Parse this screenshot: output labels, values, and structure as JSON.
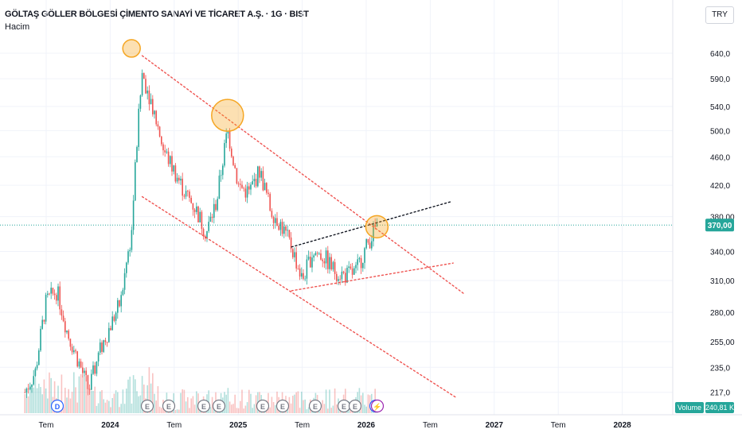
{
  "header": {
    "title": "GÖLTAŞ GÖLLER BÖLGESİ ÇİMENTO SANAYİ VE TİCARET A.Ş. · 1G · BIST",
    "subtitle": "Hacim",
    "currency_button": "TRY"
  },
  "chart_data": {
    "type": "candlestick",
    "scale": "log",
    "y_ticks": [
      "640,0",
      "590,0",
      "540,0",
      "500,0",
      "460,0",
      "420,0",
      "380,00",
      "340,00",
      "310,00",
      "280,00",
      "255,00",
      "235,0",
      "217,0"
    ],
    "x_ticks": [
      "Tem",
      "2024",
      "Tem",
      "2025",
      "Tem",
      "2026",
      "Tem",
      "2027",
      "Tem",
      "2028"
    ],
    "last_price_label": "370,00",
    "last_price": 370,
    "volume_label": "Volume",
    "volume_value": "240,81 K",
    "price_series": [
      [
        "2023-05",
        217
      ],
      [
        "2023-06",
        232
      ],
      [
        "2023-07",
        290
      ],
      [
        "2023-08",
        300
      ],
      [
        "2023-09",
        262
      ],
      [
        "2023-10",
        240
      ],
      [
        "2023-11",
        218
      ],
      [
        "2023-12",
        247
      ],
      [
        "2024-01",
        268
      ],
      [
        "2024-02",
        290
      ],
      [
        "2024-03",
        360
      ],
      [
        "2024-04",
        600
      ],
      [
        "2024-05",
        540
      ],
      [
        "2024-06",
        470
      ],
      [
        "2024-07",
        440
      ],
      [
        "2024-08",
        410
      ],
      [
        "2024-09",
        390
      ],
      [
        "2024-10",
        360
      ],
      [
        "2024-11",
        400
      ],
      [
        "2024-12",
        500
      ],
      [
        "2025-01",
        420
      ],
      [
        "2025-02",
        410
      ],
      [
        "2025-03",
        440
      ],
      [
        "2025-04",
        390
      ],
      [
        "2025-05",
        370
      ],
      [
        "2025-06",
        345
      ],
      [
        "2025-07",
        310
      ],
      [
        "2025-08",
        340
      ],
      [
        "2025-09",
        335
      ],
      [
        "2025-10",
        320
      ],
      [
        "2025-11",
        315
      ],
      [
        "2025-12",
        318
      ],
      [
        "2026-01",
        345
      ],
      [
        "2026-02",
        370
      ]
    ],
    "event_markers": [
      "D",
      "E",
      "E",
      "E",
      "E",
      "E",
      "E",
      "E",
      "E",
      "E",
      "D",
      "⚡"
    ],
    "annotations": {
      "circles": 3,
      "channel_upper": [
        [
          "2024-04",
          635
        ],
        [
          "2026-06",
          330
        ]
      ],
      "channel_lower": [
        [
          "2024-04",
          405
        ],
        [
          "2026-05",
          235
        ]
      ],
      "triangle_upper": [
        [
          "2025-06",
          345
        ],
        [
          "2026-04",
          380
        ]
      ],
      "triangle_lower": [
        [
          "2025-06",
          300
        ],
        [
          "2026-04",
          318
        ]
      ]
    },
    "colors": {
      "up": "#26a69a",
      "down": "#ef5350",
      "trend": "#ef5350",
      "resistance": "#131722",
      "highlight": "#f5a623",
      "last_price_bg": "#26a69a",
      "event_E": "#787b86",
      "event_D": "#2962ff",
      "event_split": "#9c27b0"
    }
  }
}
